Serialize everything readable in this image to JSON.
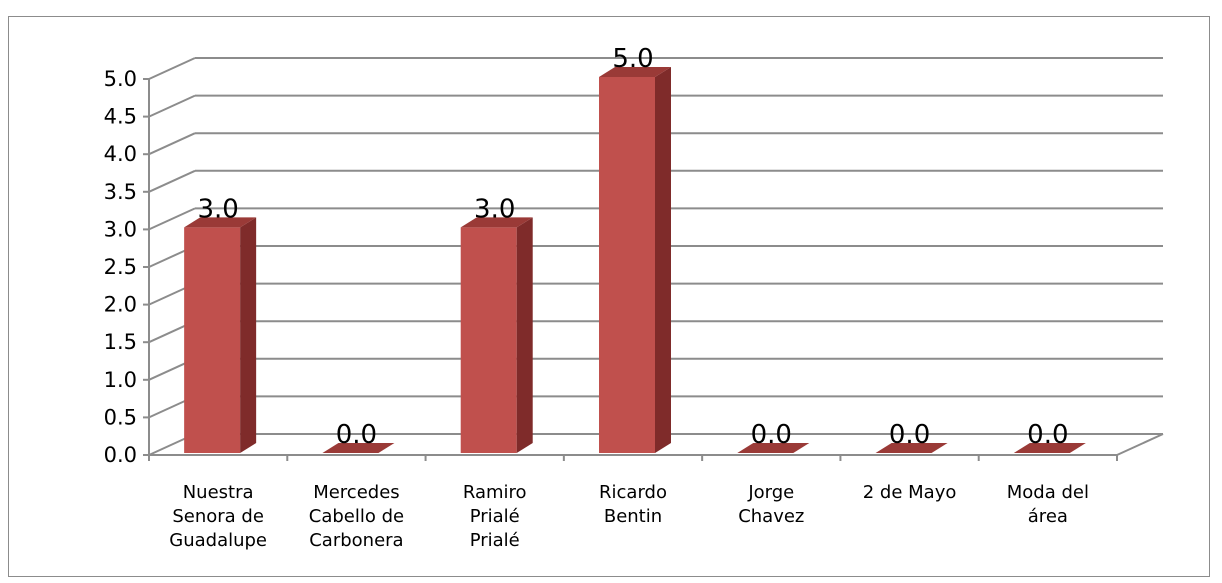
{
  "chart_data": {
    "type": "bar",
    "style": "3d-column",
    "categories": [
      [
        "Nuestra",
        "Senora de",
        "Guadalupe"
      ],
      [
        "Mercedes",
        "Cabello de",
        "Carbonera"
      ],
      [
        "Ramiro",
        "Prialé",
        "Prialé"
      ],
      [
        "Ricardo",
        "Bentin"
      ],
      [
        "Jorge",
        "Chavez"
      ],
      [
        "2 de Mayo"
      ],
      [
        "Moda del",
        "área"
      ]
    ],
    "values": [
      3.0,
      0.0,
      3.0,
      5.0,
      0.0,
      0.0,
      0.0
    ],
    "data_labels": [
      "3.0",
      "0.0",
      "3.0",
      "5.0",
      "0.0",
      "0.0",
      "0.0"
    ],
    "ylim": [
      0,
      5
    ],
    "ytick_step": 0.5,
    "ytick_labels": [
      "0.0",
      "0.5",
      "1.0",
      "1.5",
      "2.0",
      "2.5",
      "3.0",
      "3.5",
      "4.0",
      "4.5",
      "5.0"
    ],
    "title": "",
    "xlabel": "",
    "ylabel": "",
    "grid": true,
    "legend": false,
    "colors": {
      "bar_front": "#c0504d",
      "bar_side": "#7f2b2a",
      "bar_top": "#9a3a37",
      "gridline": "#8c8c8c",
      "axis": "#8c8c8c"
    }
  }
}
